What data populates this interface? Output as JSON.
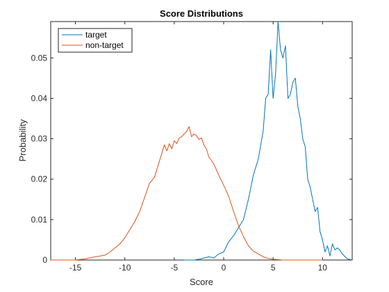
{
  "chart_data": {
    "type": "line",
    "title": "Score Distributions",
    "xlabel": "Score",
    "ylabel": "Probability",
    "xlim": [
      -17.5,
      13
    ],
    "ylim": [
      0,
      0.059
    ],
    "xticks": [
      -15,
      -10,
      -5,
      0,
      5,
      10
    ],
    "yticks": [
      0,
      0.01,
      0.02,
      0.03,
      0.04,
      0.05
    ],
    "xtick_labels": [
      "-15",
      "-10",
      "-5",
      "0",
      "5",
      "10"
    ],
    "ytick_labels": [
      "0",
      "0.01",
      "0.02",
      "0.03",
      "0.04",
      "0.05"
    ],
    "grid": false,
    "legend_position": "top-left",
    "series": [
      {
        "name": "target",
        "color": "#0072BD",
        "x": [
          -4,
          -3,
          -2.5,
          -2,
          -1.5,
          -1,
          -0.5,
          0,
          0.5,
          1,
          1.5,
          2,
          2.5,
          3,
          3.5,
          4,
          4.25,
          4.5,
          4.75,
          5,
          5.25,
          5.5,
          5.75,
          6,
          6.25,
          6.5,
          6.75,
          7,
          7.25,
          7.5,
          7.75,
          8,
          8.25,
          8.5,
          8.75,
          9,
          9.25,
          9.5,
          9.75,
          10,
          10.25,
          10.5,
          10.75,
          11,
          11.25,
          11.5,
          11.75,
          12,
          12.5,
          13
        ],
        "y": [
          0,
          0,
          0.0002,
          0.0005,
          0.0008,
          0.0005,
          0.0015,
          0.002,
          0.0045,
          0.006,
          0.008,
          0.01,
          0.015,
          0.021,
          0.025,
          0.032,
          0.04,
          0.041,
          0.052,
          0.04,
          0.046,
          0.059,
          0.052,
          0.05,
          0.053,
          0.04,
          0.041,
          0.044,
          0.045,
          0.038,
          0.035,
          0.03,
          0.028,
          0.02,
          0.018,
          0.015,
          0.012,
          0.013,
          0.007,
          0.005,
          0.002,
          0.0035,
          0.001,
          0.004,
          0.0025,
          0.003,
          0.0025,
          0.0015,
          0.0003,
          0
        ]
      },
      {
        "name": "non-target",
        "color": "#D95319",
        "x": [
          -17.5,
          -15,
          -14,
          -13,
          -12,
          -11.5,
          -11,
          -10.5,
          -10,
          -9.5,
          -9,
          -8.5,
          -8,
          -7.5,
          -7,
          -6.5,
          -6,
          -5.75,
          -5.5,
          -5.25,
          -5,
          -4.75,
          -4.5,
          -4.25,
          -4,
          -3.75,
          -3.5,
          -3.25,
          -3,
          -2.75,
          -2.5,
          -2.25,
          -2,
          -1.75,
          -1.5,
          -1,
          -0.5,
          0,
          0.5,
          1,
          1.5,
          2,
          2.5,
          3,
          3.5,
          4,
          4.5,
          5,
          6,
          7,
          8,
          9,
          10
        ],
        "y": [
          0,
          0,
          0.0003,
          0.0008,
          0.0012,
          0.002,
          0.003,
          0.004,
          0.0055,
          0.0075,
          0.0095,
          0.012,
          0.0155,
          0.019,
          0.0205,
          0.0245,
          0.0285,
          0.027,
          0.0288,
          0.0275,
          0.0295,
          0.0288,
          0.0302,
          0.0305,
          0.0312,
          0.0318,
          0.033,
          0.0305,
          0.0312,
          0.0308,
          0.0298,
          0.0302,
          0.0285,
          0.0275,
          0.0255,
          0.0238,
          0.021,
          0.0185,
          0.0158,
          0.012,
          0.0085,
          0.0058,
          0.0035,
          0.0022,
          0.0015,
          0.0008,
          0.0004,
          0.0002,
          0,
          0,
          0,
          0,
          0
        ]
      }
    ]
  }
}
